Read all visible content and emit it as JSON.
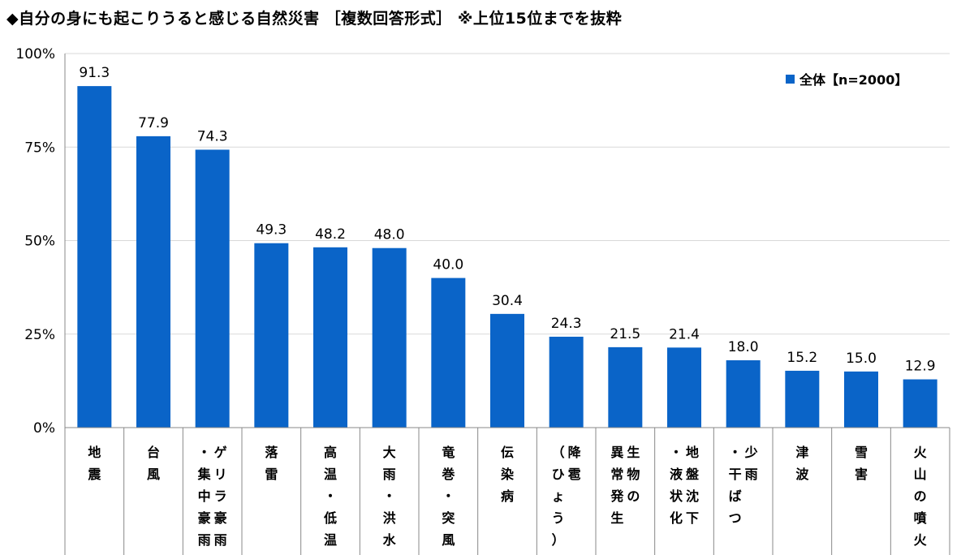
{
  "title": "◆自分の身にも起こりうると感じる自然災害 ［複数回答形式］ ※上位15位までを抜粋",
  "chart_data": {
    "type": "bar",
    "categories": [
      [
        "地",
        "震"
      ],
      [
        "台",
        "風"
      ],
      [
        "ゲリラ",
        "・集中",
        "豪雨",
        "豪雨"
      ],
      [
        "落",
        "雷"
      ],
      [
        "高温",
        "・低温"
      ],
      [
        "大雨",
        "・洪水"
      ],
      [
        "竜巻",
        "・突風"
      ],
      [
        "伝染病"
      ],
      [
        "降雹",
        "（ひょう）"
      ],
      [
        "生物の",
        "異常発生"
      ],
      [
        "地盤沈下",
        "・液状化"
      ],
      [
        "少雨",
        "・干ばつ"
      ],
      [
        "津波"
      ],
      [
        "雪害"
      ],
      [
        "火山の噴火"
      ]
    ],
    "category_columns": [
      [
        [
          "地",
          "震"
        ]
      ],
      [
        [
          "台",
          "風"
        ]
      ],
      [
        [
          "・",
          "集",
          "中",
          "豪",
          "雨"
        ],
        [
          "ゲ",
          "リ",
          "ラ",
          "豪",
          "雨"
        ]
      ],
      [
        [
          "落",
          "雷"
        ]
      ],
      [
        [
          "高",
          "温",
          "・",
          "低",
          "温"
        ]
      ],
      [
        [
          "大",
          "雨",
          "・",
          "洪",
          "水"
        ]
      ],
      [
        [
          "竜",
          "巻",
          "・",
          "突",
          "風"
        ]
      ],
      [
        [
          "伝",
          "染",
          "病"
        ]
      ],
      [
        [
          "（",
          "ひ",
          "ょ",
          "う",
          "）"
        ],
        [
          "降",
          "雹"
        ]
      ],
      [
        [
          "異",
          "常",
          "発",
          "生"
        ],
        [
          "生",
          "物",
          "の"
        ]
      ],
      [
        [
          "・",
          "液",
          "状",
          "化"
        ],
        [
          "地",
          "盤",
          "沈",
          "下"
        ]
      ],
      [
        [
          "・",
          "干",
          "ば",
          "つ"
        ],
        [
          "少",
          "雨"
        ]
      ],
      [
        [
          "津",
          "波"
        ]
      ],
      [
        [
          "雪",
          "害"
        ]
      ],
      [
        [
          "火",
          "山",
          "の",
          "噴",
          "火"
        ]
      ]
    ],
    "series": [
      {
        "name": "全体【n=2000】",
        "values": [
          91.3,
          77.9,
          74.3,
          49.3,
          48.2,
          48.0,
          40.0,
          30.4,
          24.3,
          21.5,
          21.4,
          18.0,
          15.2,
          15.0,
          12.9
        ]
      }
    ],
    "value_labels": [
      "91.3",
      "77.9",
      "74.3",
      "49.3",
      "48.2",
      "48.0",
      "40.0",
      "30.4",
      "24.3",
      "21.5",
      "21.4",
      "18.0",
      "15.2",
      "15.0",
      "12.9"
    ],
    "ylim": [
      0,
      100
    ],
    "yticks": [
      0,
      25,
      50,
      75,
      100
    ],
    "ytick_labels": [
      "0%",
      "25%",
      "50%",
      "75%",
      "100%"
    ],
    "grid": true,
    "legend_position": "top-right",
    "colors": {
      "bar": "#0a64c8",
      "grid": "#d9d9d9",
      "axis": "#888888"
    }
  }
}
